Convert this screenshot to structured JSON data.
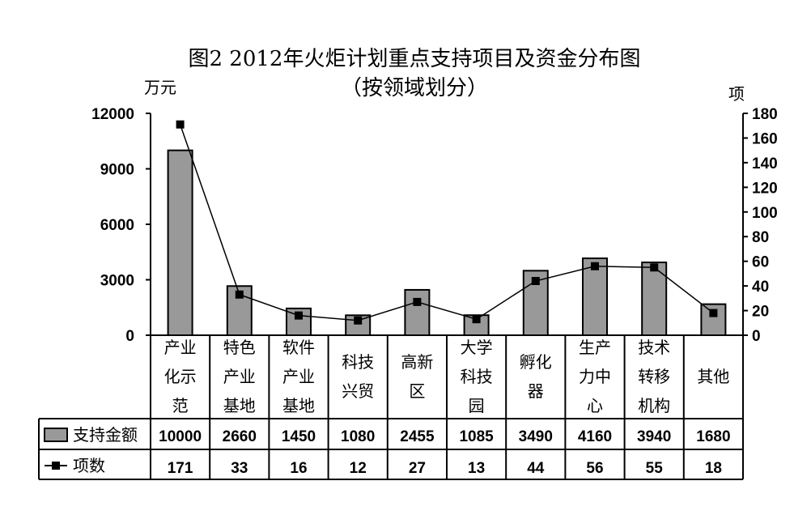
{
  "chart_data": {
    "type": "bar+line",
    "title": "图2 2012年火炬计划重点支持项目及资金分布图",
    "subtitle": "（按领域划分）",
    "left_axis_unit": "万元",
    "right_axis_unit": "项",
    "categories": [
      [
        "产业",
        "化示",
        "范"
      ],
      [
        "特色",
        "产业",
        "基地"
      ],
      [
        "软件",
        "产业",
        "基地"
      ],
      [
        "科技",
        "兴贸"
      ],
      [
        "高新",
        "区"
      ],
      [
        "大学",
        "科技",
        "园"
      ],
      [
        "孵化",
        "器"
      ],
      [
        "生产",
        "力中",
        "心"
      ],
      [
        "技术",
        "转移",
        "机构"
      ],
      [
        "其他"
      ]
    ],
    "left_ylim": [
      0,
      12000
    ],
    "left_ticks": [
      "0",
      "3000",
      "6000",
      "9000",
      "12000"
    ],
    "right_ylim": [
      0,
      180
    ],
    "right_ticks": [
      "0",
      "20",
      "40",
      "60",
      "80",
      "100",
      "120",
      "140",
      "160",
      "180"
    ],
    "series": [
      {
        "name": "支持金额",
        "type": "bar",
        "axis": "left",
        "color": "#999999",
        "values": [
          10000,
          2660,
          1450,
          1080,
          2455,
          1085,
          3490,
          4160,
          3940,
          1680
        ]
      },
      {
        "name": "项数",
        "type": "line",
        "axis": "right",
        "color": "#000000",
        "values": [
          171,
          33,
          16,
          12,
          27,
          13,
          44,
          56,
          55,
          18
        ]
      }
    ],
    "grid": false,
    "legend": "data-table"
  }
}
